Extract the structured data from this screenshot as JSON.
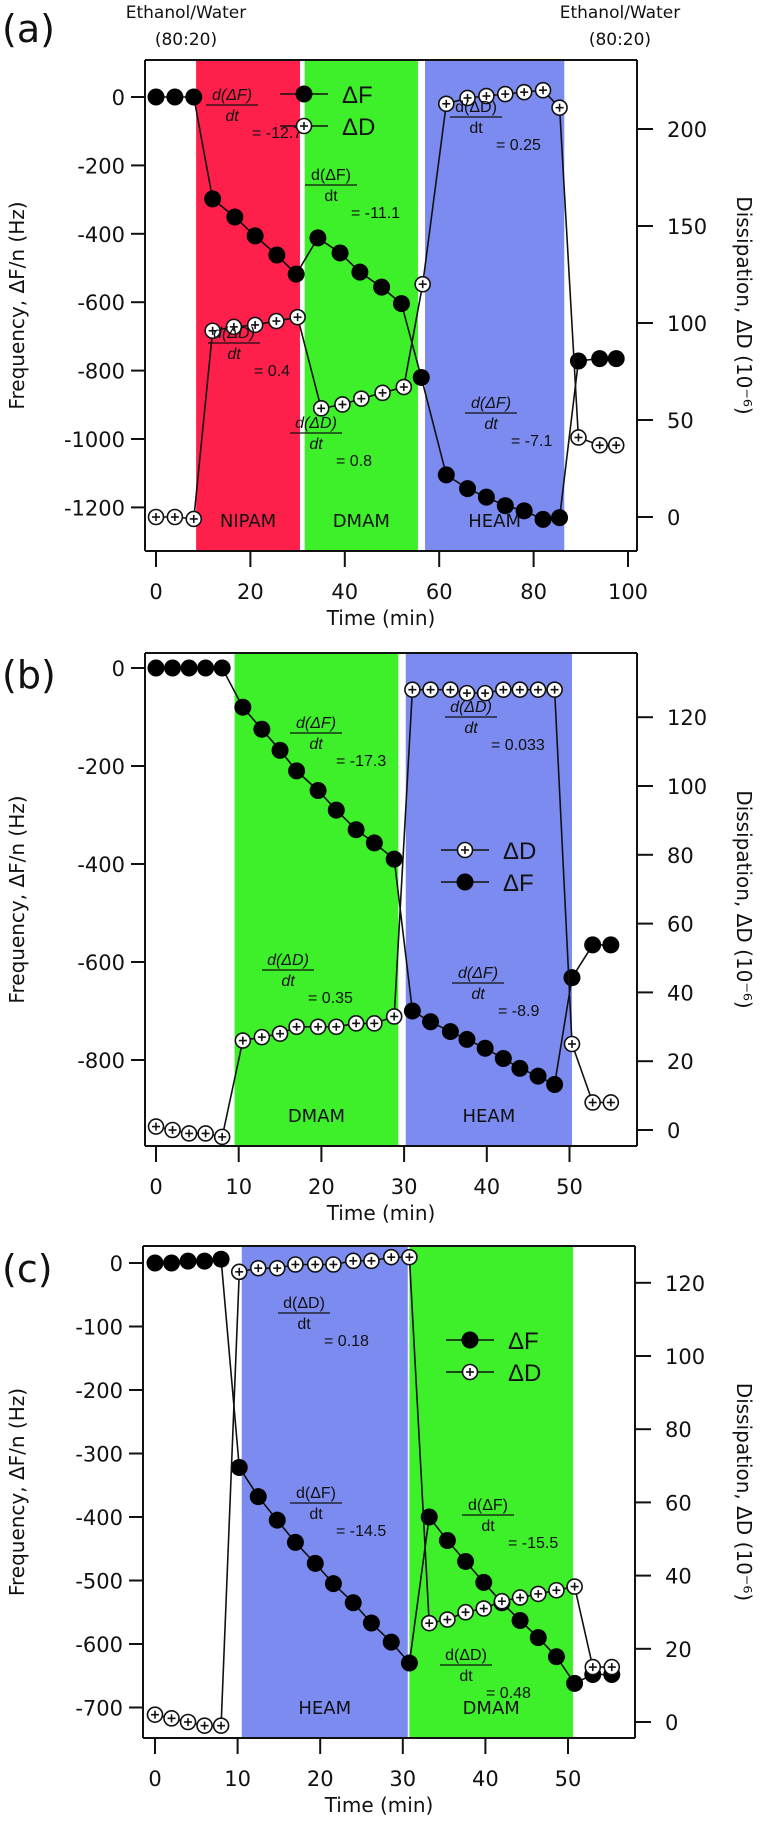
{
  "chart_data": [
    {
      "type": "line",
      "panel_label": "(a)",
      "xlabel": "Time (min)",
      "ylabel": "Frequency, ΔF/n (Hz)",
      "y2label": "Dissipation, ΔD (10⁻⁶)",
      "xlim": [
        0,
        100
      ],
      "ylim": [
        -1320,
        100
      ],
      "y2lim": [
        -18,
        216
      ],
      "xticks": [
        0,
        20,
        40,
        60,
        80,
        100
      ],
      "yticks": [
        0,
        -200,
        -400,
        -600,
        -800,
        -1000,
        -1200
      ],
      "y2ticks": [
        0,
        50,
        100,
        150,
        200
      ],
      "grid": false,
      "legend_position": "top-center",
      "legend": [
        "ΔF",
        "ΔD"
      ],
      "top_annotations": [
        {
          "x": 0,
          "lines": [
            "Ethanol/Water",
            "(80:20)"
          ]
        },
        {
          "x": 93,
          "lines": [
            "Ethanol/Water",
            "(80:20)"
          ]
        }
      ],
      "bands": [
        {
          "label": "NIPAM",
          "x0": 8.5,
          "x1": 30.5,
          "color": "#FF1F4B"
        },
        {
          "label": "DMAM",
          "x0": 31.5,
          "x1": 55.5,
          "color": "#3DF02A"
        },
        {
          "label": "HEAM",
          "x0": 57,
          "x1": 86.5,
          "color": "#7B8BF0"
        }
      ],
      "series": [
        {
          "name": "ΔF",
          "axis": "left",
          "marker": "filled-circle",
          "x": [
            0,
            4,
            8,
            12,
            16.7,
            21,
            25.6,
            29.7,
            34.3,
            39,
            43.2,
            47.8,
            52,
            56.2,
            61.5,
            66,
            70,
            74,
            78,
            82,
            85.5,
            89.5,
            94,
            97.5
          ],
          "y": [
            0,
            0,
            0,
            -298,
            -351,
            -406,
            -462,
            -518,
            -412,
            -456,
            -512,
            -556,
            -604,
            -820,
            -1105,
            -1145,
            -1170,
            -1195,
            -1210,
            -1235,
            -1230,
            -772,
            -765,
            -765
          ]
        },
        {
          "name": "ΔD",
          "axis": "right",
          "marker": "plus-circle",
          "x": [
            0,
            4,
            8,
            12,
            16.5,
            21,
            25.5,
            30,
            35,
            39.5,
            43.5,
            48,
            52.5,
            56.5,
            61.5,
            66,
            70,
            74,
            78,
            82,
            85.5,
            89.5,
            94,
            97.5
          ],
          "y": [
            0,
            0,
            -1,
            96,
            98,
            99,
            101,
            103,
            56,
            58,
            61,
            64,
            67,
            120,
            213,
            216,
            217,
            218,
            219,
            220,
            211,
            41,
            37,
            37
          ]
        }
      ],
      "annotations": [
        {
          "num": "d(ΔF)",
          "den": "dt",
          "value": "= -12.7",
          "italic": true
        },
        {
          "num": "d(ΔD)",
          "den": "dt",
          "value": "= 0.4",
          "italic": true
        },
        {
          "num": "d(ΔF)",
          "den": "dt",
          "value": "= -11.1",
          "italic": false
        },
        {
          "num": "d(ΔD)",
          "den": "dt",
          "value": "= 0.8",
          "italic": true
        },
        {
          "num": "d(ΔD)",
          "den": "dt",
          "value": "= 0.25",
          "italic": false
        },
        {
          "num": "d(ΔF)",
          "den": "dt",
          "value": "= -7.1",
          "italic": true
        }
      ]
    },
    {
      "type": "line",
      "panel_label": "(b)",
      "xlabel": "Time (min)",
      "ylabel": "Frequency, ΔF/n (Hz)",
      "y2label": "Dissipation, ΔD (10⁻⁶)",
      "xlim": [
        0,
        58
      ],
      "ylim": [
        -960,
        40
      ],
      "y2lim": [
        -5,
        133
      ],
      "xticks": [
        0,
        10,
        20,
        30,
        40,
        50
      ],
      "yticks": [
        0,
        -200,
        -400,
        -600,
        -800
      ],
      "y2ticks": [
        0,
        20,
        40,
        60,
        80,
        100,
        120
      ],
      "grid": false,
      "legend_position": "center-right",
      "legend": [
        "ΔD",
        "ΔF"
      ],
      "bands": [
        {
          "label": "DMAM",
          "x0": 9.5,
          "x1": 29.3,
          "color": "#3DF02A"
        },
        {
          "label": "HEAM",
          "x0": 30.2,
          "x1": 50.3,
          "color": "#7B8BF0"
        }
      ],
      "series": [
        {
          "name": "ΔF",
          "axis": "left",
          "marker": "filled-circle",
          "x": [
            0,
            2,
            4,
            6,
            8,
            10.5,
            12.8,
            15,
            17,
            19.6,
            21.8,
            24.2,
            26.4,
            28.8,
            31,
            33.2,
            35.6,
            37.6,
            39.8,
            42,
            44,
            46.2,
            48.2,
            50.3,
            52.8,
            55
          ],
          "y": [
            0,
            0,
            0,
            0,
            0,
            -80,
            -125,
            -168,
            -210,
            -250,
            -290,
            -330,
            -357,
            -390,
            -700,
            -722,
            -742,
            -758,
            -776,
            -797,
            -817,
            -833,
            -850,
            -632,
            -565,
            -565
          ]
        },
        {
          "name": "ΔD",
          "axis": "right",
          "marker": "plus-circle",
          "x": [
            0,
            2,
            4,
            6,
            8,
            10.5,
            12.8,
            15,
            17,
            19.6,
            21.8,
            24.2,
            26.4,
            28.8,
            31,
            33.2,
            35.6,
            37.6,
            39.8,
            42,
            44,
            46.2,
            48.2,
            50.3,
            52.8,
            55
          ],
          "y": [
            1,
            0,
            -1,
            -1,
            -2,
            26,
            27,
            28,
            30,
            30,
            30,
            31,
            31,
            33,
            128,
            128,
            128,
            127,
            127,
            128,
            128,
            128,
            128,
            25,
            8,
            8
          ]
        }
      ],
      "annotations": [
        {
          "num": "d(ΔF)",
          "den": "dt",
          "value": "= -17.3",
          "italic": true
        },
        {
          "num": "d(ΔD)",
          "den": "dt",
          "value": "= 0.033",
          "italic": true
        },
        {
          "num": "d(ΔD)",
          "den": "dt",
          "value": "= 0.35",
          "italic": true
        },
        {
          "num": "d(ΔF)",
          "den": "dt",
          "value": "= -8.9",
          "italic": true
        }
      ]
    },
    {
      "type": "line",
      "panel_label": "(c)",
      "xlabel": "Time (min)",
      "ylabel": "Frequency, ΔF/n (Hz)",
      "y2label": "Dissipation, ΔD (10⁻⁶)",
      "xlim": [
        0,
        58
      ],
      "ylim": [
        -755,
        25
      ],
      "y2lim": [
        -4.5,
        128
      ],
      "xticks": [
        0,
        10,
        20,
        30,
        40,
        50
      ],
      "yticks": [
        0,
        -100,
        -200,
        -300,
        -400,
        -500,
        -600,
        -700
      ],
      "y2ticks": [
        0,
        20,
        40,
        60,
        80,
        100,
        120
      ],
      "grid": false,
      "legend_position": "top-right",
      "legend": [
        "ΔF",
        "ΔD"
      ],
      "bands": [
        {
          "label": "HEAM",
          "x0": 10.5,
          "x1": 30.6,
          "color": "#7B8BF0"
        },
        {
          "label": "DMAM",
          "x0": 30.8,
          "x1": 50.6,
          "color": "#3DF02A"
        }
      ],
      "series": [
        {
          "name": "ΔF",
          "axis": "left",
          "marker": "filled-circle",
          "x": [
            0,
            2,
            4,
            6,
            8,
            10.2,
            12.5,
            14.8,
            17,
            19.4,
            21.6,
            24,
            26.2,
            28.6,
            30.8,
            33.2,
            35.4,
            37.6,
            39.8,
            42,
            44.2,
            46.4,
            48.6,
            50.8,
            53,
            55.3
          ],
          "y": [
            0,
            0,
            3,
            3,
            6,
            -322,
            -368,
            -405,
            -440,
            -473,
            -505,
            -535,
            -567,
            -597,
            -630,
            -400,
            -437,
            -470,
            -503,
            -535,
            -563,
            -590,
            -620,
            -662,
            -648,
            -648
          ]
        },
        {
          "name": "ΔD",
          "axis": "right",
          "marker": "plus-circle",
          "x": [
            0,
            2,
            4,
            6,
            8,
            10.2,
            12.5,
            14.8,
            17,
            19.4,
            21.6,
            24,
            26.2,
            28.6,
            30.8,
            33.2,
            35.4,
            37.6,
            39.8,
            42,
            44.2,
            46.4,
            48.6,
            50.8,
            53,
            55.3
          ],
          "y": [
            2,
            1,
            0,
            -1,
            -1,
            123,
            124,
            124,
            125,
            125,
            125,
            126,
            126,
            127,
            127,
            27,
            28,
            30,
            31,
            33,
            34,
            35,
            36,
            37,
            15,
            15
          ]
        }
      ],
      "annotations": [
        {
          "num": "d(ΔD)",
          "den": "dt",
          "value": "= 0.18",
          "italic": false
        },
        {
          "num": "d(ΔF)",
          "den": "dt",
          "value": "= -14.5",
          "italic": false
        },
        {
          "num": "d(ΔF)",
          "den": "dt",
          "value": "= -15.5",
          "italic": false
        },
        {
          "num": "d(ΔD)",
          "den": "dt",
          "value": "= 0.48",
          "italic": false
        }
      ]
    }
  ]
}
